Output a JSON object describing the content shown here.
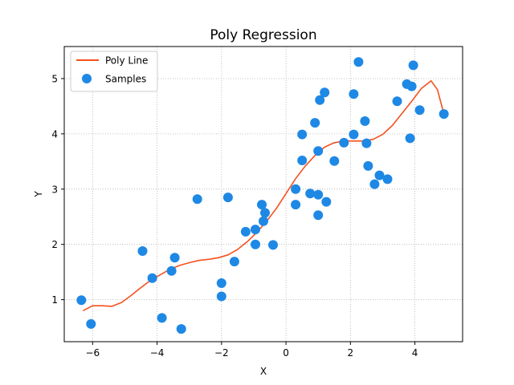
{
  "chart_data": {
    "type": "scatter",
    "title": "Poly Regression",
    "xlabel": "X",
    "ylabel": "Y",
    "xlim": [
      -6.88,
      5.48
    ],
    "ylim": [
      0.24,
      5.58
    ],
    "xticks": [
      -6,
      -4,
      -2,
      0,
      2,
      4
    ],
    "yticks": [
      1,
      2,
      3,
      4,
      5
    ],
    "grid": true,
    "legend_position": "top-left",
    "series": [
      {
        "name": "Poly Line",
        "kind": "line",
        "color": "#f4511e",
        "x": [
          -6.3,
          -6.0,
          -5.7,
          -5.4,
          -5.1,
          -4.8,
          -4.5,
          -4.2,
          -3.9,
          -3.6,
          -3.3,
          -3.0,
          -2.7,
          -2.4,
          -2.1,
          -1.8,
          -1.5,
          -1.2,
          -0.9,
          -0.6,
          -0.3,
          0.0,
          0.3,
          0.6,
          0.9,
          1.2,
          1.5,
          1.8,
          2.1,
          2.4,
          2.7,
          3.0,
          3.3,
          3.6,
          3.9,
          4.2,
          4.5,
          4.7,
          4.9
        ],
        "y": [
          0.8,
          0.89,
          0.89,
          0.88,
          0.95,
          1.08,
          1.22,
          1.35,
          1.45,
          1.55,
          1.62,
          1.67,
          1.71,
          1.73,
          1.76,
          1.81,
          1.91,
          2.05,
          2.22,
          2.42,
          2.65,
          2.92,
          3.19,
          3.42,
          3.61,
          3.76,
          3.84,
          3.87,
          3.87,
          3.87,
          3.9,
          3.99,
          4.15,
          4.37,
          4.59,
          4.82,
          4.96,
          4.8,
          4.36
        ]
      },
      {
        "name": "Samples",
        "kind": "scatter",
        "color": "#1e88e5",
        "points": [
          [
            -6.35,
            0.99
          ],
          [
            -6.05,
            0.56
          ],
          [
            -4.45,
            1.88
          ],
          [
            -4.15,
            1.39
          ],
          [
            -3.85,
            0.67
          ],
          [
            -3.55,
            1.52
          ],
          [
            -3.45,
            1.76
          ],
          [
            -3.25,
            0.47
          ],
          [
            -2.75,
            2.82
          ],
          [
            -2.0,
            1.3
          ],
          [
            -2.0,
            1.06
          ],
          [
            -1.8,
            2.85
          ],
          [
            -1.6,
            1.69
          ],
          [
            -1.25,
            2.23
          ],
          [
            -0.95,
            2.27
          ],
          [
            -0.95,
            2.0
          ],
          [
            -0.75,
            2.72
          ],
          [
            -0.7,
            2.42
          ],
          [
            -0.65,
            2.57
          ],
          [
            -0.4,
            1.99
          ],
          [
            0.3,
            3.0
          ],
          [
            0.3,
            2.72
          ],
          [
            0.5,
            3.52
          ],
          [
            0.5,
            3.99
          ],
          [
            0.75,
            2.92
          ],
          [
            0.9,
            4.2
          ],
          [
            1.0,
            2.9
          ],
          [
            1.0,
            2.53
          ],
          [
            1.0,
            3.69
          ],
          [
            1.05,
            4.61
          ],
          [
            1.2,
            4.75
          ],
          [
            1.25,
            2.77
          ],
          [
            1.5,
            3.51
          ],
          [
            1.8,
            3.84
          ],
          [
            2.1,
            3.99
          ],
          [
            2.1,
            4.72
          ],
          [
            2.25,
            5.3
          ],
          [
            2.45,
            4.23
          ],
          [
            2.5,
            3.83
          ],
          [
            2.55,
            3.42
          ],
          [
            2.75,
            3.09
          ],
          [
            2.9,
            3.25
          ],
          [
            3.15,
            3.18
          ],
          [
            3.45,
            4.59
          ],
          [
            3.75,
            4.9
          ],
          [
            3.85,
            3.92
          ],
          [
            3.9,
            4.86
          ],
          [
            3.95,
            5.24
          ],
          [
            4.15,
            4.43
          ],
          [
            4.9,
            4.36
          ]
        ]
      }
    ]
  }
}
